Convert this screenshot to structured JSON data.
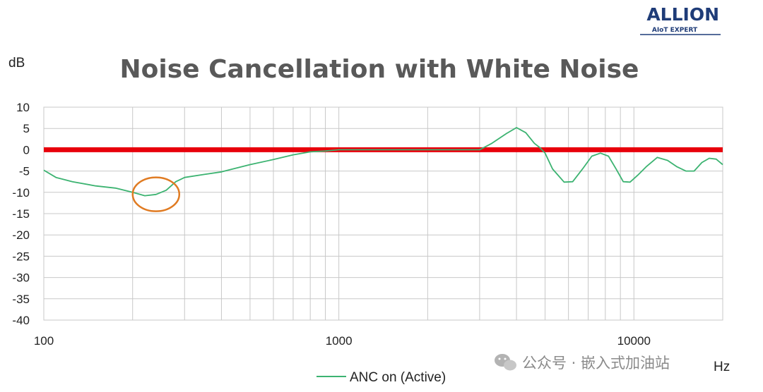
{
  "logo": {
    "name": "ALLION",
    "tagline": "AIoT EXPERT"
  },
  "watermark": {
    "text": "公众号 · 嵌入式加油站"
  },
  "chart_data": {
    "type": "line",
    "title": "Noise Cancellation with White Noise",
    "ylabel": "dB",
    "xlabel": "Hz",
    "xscale": "log",
    "xlim": [
      100,
      20000
    ],
    "ylim": [
      -40,
      10
    ],
    "y_ticks": [
      10,
      5,
      0,
      -5,
      -10,
      -15,
      -20,
      -25,
      -30,
      -35,
      -40
    ],
    "x_tick_labels": [
      100,
      1000,
      10000
    ],
    "grid": true,
    "legend_position": "bottom",
    "reference_line": {
      "y": 0,
      "color": "#e8000b"
    },
    "highlight": {
      "type": "circle",
      "x": 240,
      "y": -10.3,
      "color": "#e07b22"
    },
    "series": [
      {
        "name": "ANC on (Active)",
        "color": "#3cb371",
        "x": [
          100,
          110,
          125,
          150,
          175,
          200,
          220,
          240,
          260,
          280,
          300,
          350,
          400,
          500,
          600,
          700,
          800,
          900,
          1000,
          1500,
          2000,
          2500,
          3000,
          3300,
          3700,
          4000,
          4300,
          4600,
          4800,
          5000,
          5300,
          5800,
          6200,
          6700,
          7200,
          7700,
          8200,
          8700,
          9200,
          9700,
          10300,
          11000,
          12000,
          13000,
          14000,
          15000,
          16000,
          17000,
          18000,
          19000,
          20000
        ],
        "y": [
          -4.8,
          -6.5,
          -7.5,
          -8.5,
          -9,
          -10,
          -10.8,
          -10.5,
          -9.5,
          -7.5,
          -6.5,
          -5.8,
          -5.2,
          -3.5,
          -2.3,
          -1.2,
          -0.5,
          -0.3,
          0,
          0,
          0,
          0,
          0,
          1.5,
          3.8,
          5.2,
          4,
          1.5,
          0.5,
          -0.8,
          -4.5,
          -7.6,
          -7.5,
          -4.5,
          -1.5,
          -0.8,
          -1.5,
          -4.5,
          -7.5,
          -7.6,
          -6,
          -4,
          -1.8,
          -2.5,
          -4,
          -5,
          -5,
          -3,
          -2,
          -2.2,
          -3.5
        ]
      }
    ]
  }
}
